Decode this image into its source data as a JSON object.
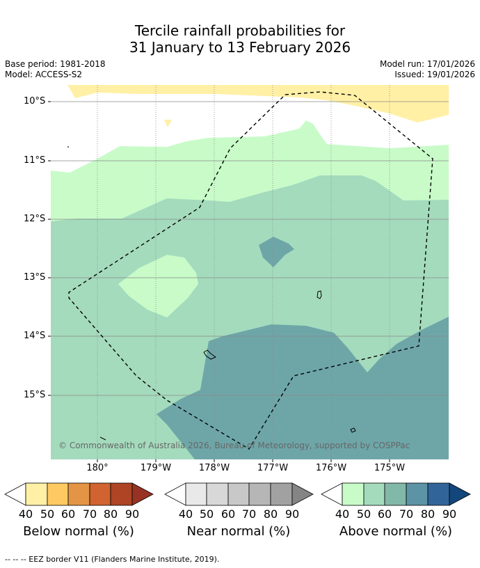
{
  "title_line1": "Tercile rainfall probabilities for",
  "title_line2": "31 January to 13 February 2026",
  "base_period": "Base period: 1981-2018",
  "model": "Model: ACCESS-S2",
  "model_run": "Model run: 17/01/2026",
  "issued": "Issued: 19/01/2026",
  "lat_labels": [
    "10°S",
    "11°S",
    "12°S",
    "13°S",
    "14°S",
    "15°S"
  ],
  "lon_labels": [
    "180°",
    "179°W",
    "178°W",
    "177°W",
    "176°W",
    "175°W"
  ],
  "copyright": "© Commonwealth of Australia 2026, Bureau of Meteorology, supported by COSPPac",
  "legend": {
    "below": {
      "title": "Below normal (%)",
      "ticks": [
        "40",
        "50",
        "60",
        "70",
        "80",
        "90"
      ],
      "colors": [
        "#fff0a6",
        "#fdc962",
        "#e39444",
        "#d0632f",
        "#ad4424",
        "#983223"
      ]
    },
    "near": {
      "title": "Near normal (%)",
      "ticks": [
        "40",
        "50",
        "60",
        "70",
        "80",
        "90"
      ],
      "colors": [
        "#e9e9e9",
        "#d8d8d8",
        "#c8c8c8",
        "#b6b6b6",
        "#a1a1a1",
        "#858585"
      ]
    },
    "above": {
      "title": "Above normal (%)",
      "ticks": [
        "40",
        "50",
        "60",
        "70",
        "80",
        "90"
      ],
      "colors": [
        "#c8fbc8",
        "#a4dbbd",
        "#82b8a8",
        "#5c93a5",
        "#316499",
        "#13467b"
      ]
    }
  },
  "footer": "--  --  -- EEZ border V11 (Flanders Marine Institute, 2019)."
}
